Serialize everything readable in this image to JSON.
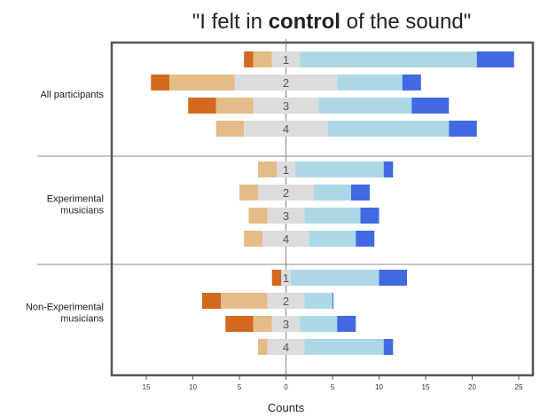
{
  "chart_data": {
    "type": "bar",
    "title_parts": [
      {
        "text": "\"I felt in ",
        "bold": false
      },
      {
        "text": "control",
        "bold": true
      },
      {
        "text": " of the sound\"",
        "bold": false
      }
    ],
    "xlabel": "Counts",
    "x_ticks": [
      "15",
      "10",
      "5",
      "0",
      "5",
      "10",
      "15",
      "20",
      "25"
    ],
    "x_tick_values": [
      -15,
      -10,
      -5,
      0,
      5,
      10,
      15,
      20,
      25
    ],
    "xlim": [
      -19,
      26
    ],
    "segment_order": [
      "strongly_disagree",
      "disagree",
      "neutral",
      "agree",
      "strongly_agree"
    ],
    "colors": {
      "strongly_disagree": "#d2691e",
      "disagree": "#e5bb88",
      "neutral": "#dcdcdc",
      "agree": "#acd8e6",
      "strongly_agree": "#4169e1",
      "frame": "#555555",
      "center_line": "#888888",
      "divider": "#888888"
    },
    "groups": [
      {
        "name": "All participants",
        "name_lines": [
          "All participants"
        ],
        "rows": [
          {
            "label": "1",
            "values": [
              1,
              2,
              3,
              19,
              4
            ]
          },
          {
            "label": "2",
            "values": [
              2,
              7,
              11,
              7,
              2
            ]
          },
          {
            "label": "3",
            "values": [
              3,
              4,
              7,
              10,
              4
            ]
          },
          {
            "label": "4",
            "values": [
              0,
              3,
              9,
              13,
              3
            ]
          }
        ]
      },
      {
        "name": "Experimental musicians",
        "name_lines": [
          "Experimental",
          "musicians"
        ],
        "rows": [
          {
            "label": "1",
            "values": [
              0,
              2,
              2,
              9.5,
              1
            ]
          },
          {
            "label": "2",
            "values": [
              0,
              2,
              6,
              4,
              2
            ]
          },
          {
            "label": "3",
            "values": [
              0,
              2,
              4,
              6,
              2
            ]
          },
          {
            "label": "4",
            "values": [
              0,
              2,
              5,
              5,
              2
            ]
          }
        ]
      },
      {
        "name": "Non-Experimental musicians",
        "name_lines": [
          "Non-Experimental",
          "musicians"
        ],
        "rows": [
          {
            "label": "1",
            "values": [
              1,
              0,
              1,
              9.5,
              3
            ]
          },
          {
            "label": "2",
            "values": [
              2,
              5,
              4,
              3,
              0.1
            ]
          },
          {
            "label": "3",
            "values": [
              3,
              2,
              3,
              4,
              2
            ]
          },
          {
            "label": "4",
            "values": [
              0,
              1,
              4,
              8.5,
              1
            ]
          }
        ]
      }
    ]
  }
}
